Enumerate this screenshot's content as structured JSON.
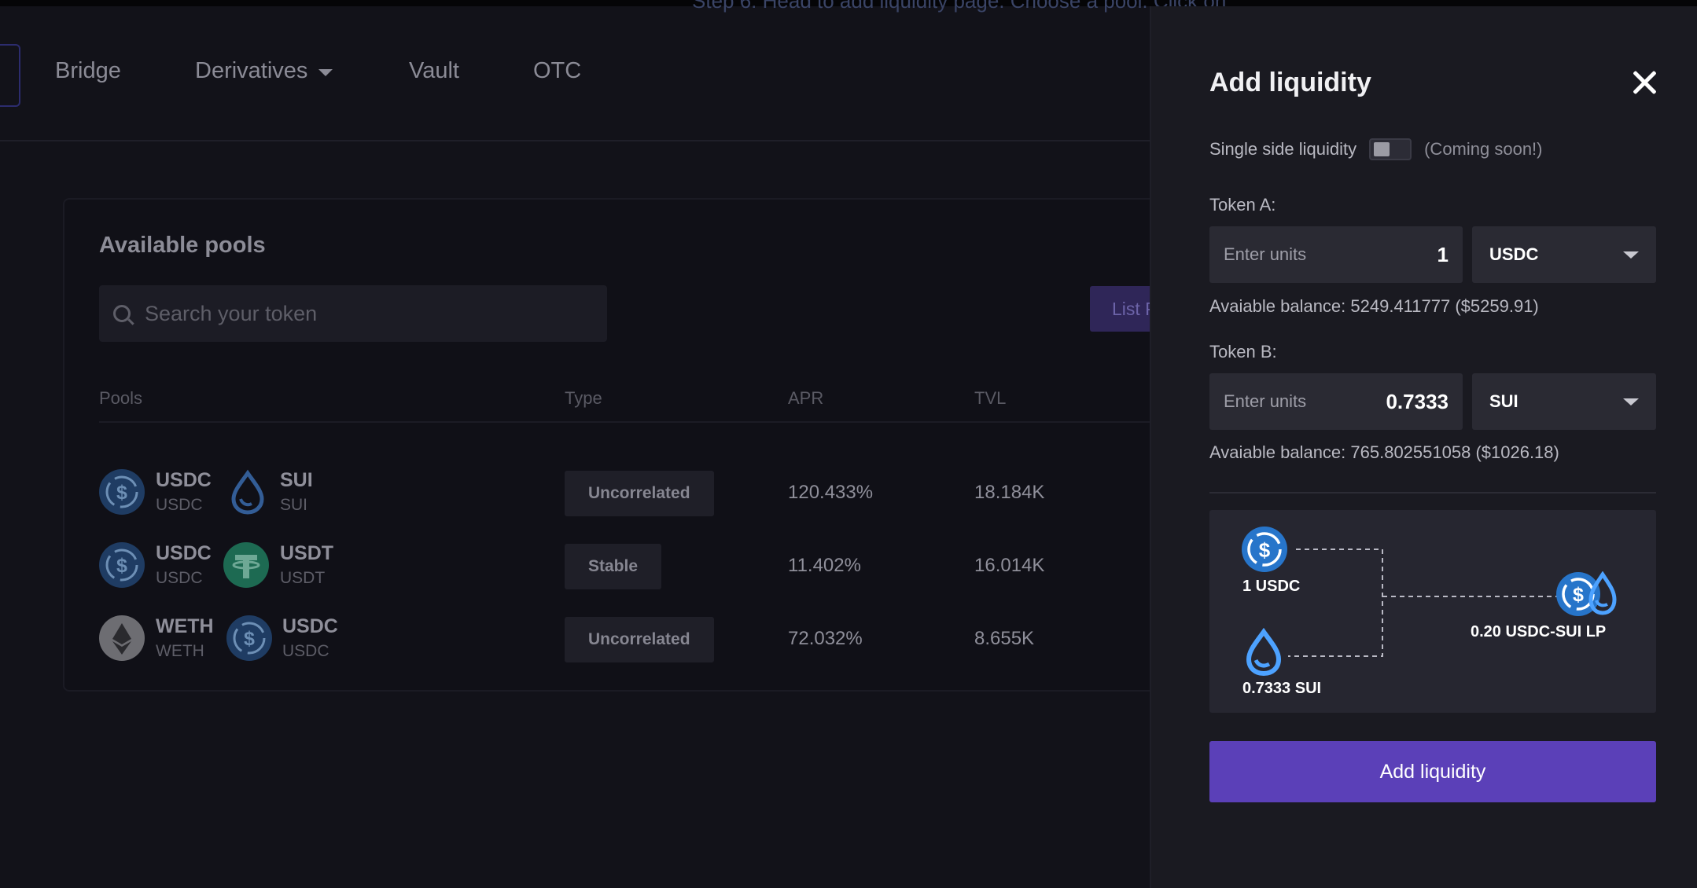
{
  "top_banner": {
    "text": "Step 6: Head to add liquidity page. Choose a pool. Click on"
  },
  "nav": {
    "items": [
      {
        "label": "Bridge"
      },
      {
        "label": "Derivatives",
        "has_dropdown": true
      },
      {
        "label": "Vault"
      },
      {
        "label": "OTC"
      }
    ]
  },
  "pools": {
    "title": "Available pools",
    "search_placeholder": "Search your token",
    "list_button": "List P",
    "columns": {
      "pools": "Pools",
      "type": "Type",
      "apr": "APR",
      "tvl": "TVL"
    },
    "rows": [
      {
        "token_a": "USDC",
        "token_a_sub": "USDC",
        "token_a_icon": "usdc-icon",
        "token_b": "SUI",
        "token_b_sub": "SUI",
        "token_b_icon": "sui-icon",
        "type": "Uncorrelated",
        "apr": "120.433%",
        "tvl": "18.184K"
      },
      {
        "token_a": "USDC",
        "token_a_sub": "USDC",
        "token_a_icon": "usdc-icon",
        "token_b": "USDT",
        "token_b_sub": "USDT",
        "token_b_icon": "usdt-icon",
        "type": "Stable",
        "apr": "11.402%",
        "tvl": "16.014K"
      },
      {
        "token_a": "WETH",
        "token_a_sub": "WETH",
        "token_a_icon": "weth-icon",
        "token_b": "USDC",
        "token_b_sub": "USDC",
        "token_b_icon": "usdc-icon",
        "type": "Uncorrelated",
        "apr": "72.032%",
        "tvl": "8.655K"
      }
    ]
  },
  "panel": {
    "title": "Add liquidity",
    "single_side_label": "Single side liquidity",
    "single_side_enabled": false,
    "coming_soon": "(Coming soon!)",
    "token_a": {
      "label": "Token A:",
      "placeholder": "Enter units",
      "value": "1",
      "token": "USDC",
      "balance": "Avaiable balance: 5249.411777 ($5259.91)"
    },
    "token_b": {
      "label": "Token B:",
      "placeholder": "Enter units",
      "value": "0.7333",
      "token": "SUI",
      "balance": "Avaiable balance: 765.802551058 ($1026.18)"
    },
    "diagram": {
      "input_a": "1 USDC",
      "input_b": "0.7333 SUI",
      "output": "0.20 USDC-SUI LP"
    },
    "submit_label": "Add liquidity"
  },
  "colors": {
    "accent": "#5b40b8",
    "usdc": "#2775ca",
    "sui": "#4da2ff",
    "usdt": "#26a17b",
    "weth": "#8a8a8a"
  }
}
